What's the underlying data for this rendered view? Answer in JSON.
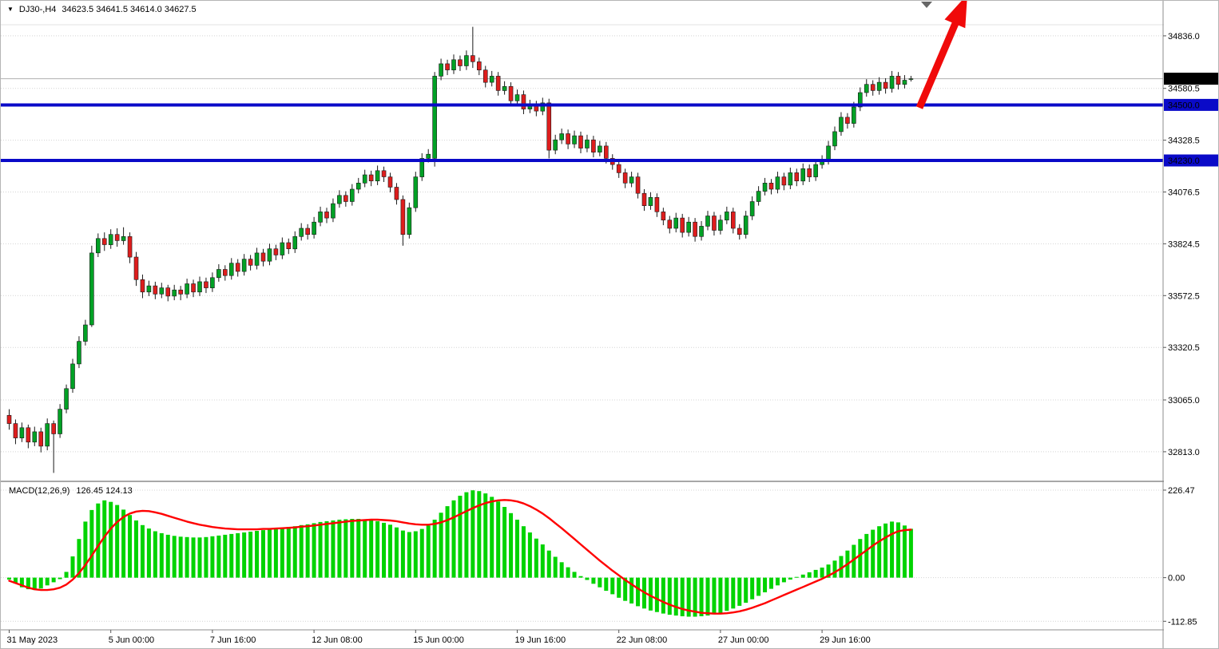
{
  "header": {
    "dropdown_icon": "▼",
    "symbol_period": "DJ30-,H4",
    "ohlc_text": "34623.5 34641.5 34614.0 34627.5"
  },
  "macd_label": {
    "name": "MACD(12,26,9)",
    "values": "126.45 124.13"
  },
  "colors": {
    "bull": "#00A125",
    "bear": "#DE1D1D",
    "outline": "#1a1a1a",
    "macd_hist": "#00D300",
    "macd_signal": "#FF0000",
    "level_line": "#0A0AC8",
    "arrow": "#F00A0A",
    "current_price_bg": "#000000",
    "badge_text": "#FFFFFF",
    "grid": "#d4d4d4",
    "axis_line": "#8c8c8c",
    "current_price_line": "#b0b0b0",
    "shift_marker": "#666666"
  },
  "chart_data": {
    "type": "candlestick",
    "title": "DJ30- H4 with MACD(12,26,9)",
    "legend_position": "none",
    "grid": "horizontal-dotted",
    "main": {
      "ylim": [
        32700,
        34890
      ],
      "y_ticks": [
        34836.0,
        34580.5,
        34328.5,
        34076.5,
        33824.5,
        33572.5,
        33320.5,
        33065.0,
        32813.0
      ],
      "current_price": {
        "value": 34627.5
      },
      "hlines": [
        {
          "price": 34500.0,
          "label": "34500.0"
        },
        {
          "price": 34230.0,
          "label": "34230.0"
        }
      ],
      "annotation": "large red up-trend arrow near last candles pointing above 34500 breakout",
      "candles": [
        [
          32990,
          33020,
          32920,
          32950
        ],
        [
          32950,
          32970,
          32850,
          32880
        ],
        [
          32880,
          32955,
          32860,
          32930
        ],
        [
          32930,
          32945,
          32830,
          32860
        ],
        [
          32860,
          32935,
          32840,
          32910
        ],
        [
          32910,
          32930,
          32810,
          32840
        ],
        [
          32840,
          32975,
          32820,
          32950
        ],
        [
          32950,
          32965,
          32710,
          32900
        ],
        [
          32900,
          33045,
          32880,
          33020
        ],
        [
          33020,
          33140,
          33000,
          33120
        ],
        [
          33120,
          33265,
          33100,
          33240
        ],
        [
          33240,
          33375,
          33220,
          33350
        ],
        [
          33350,
          33455,
          33330,
          33430
        ],
        [
          33430,
          33815,
          33420,
          33780
        ],
        [
          33780,
          33875,
          33760,
          33850
        ],
        [
          33850,
          33880,
          33790,
          33820
        ],
        [
          33820,
          33895,
          33800,
          33870
        ],
        [
          33870,
          33900,
          33810,
          33840
        ],
        [
          33840,
          33905,
          33820,
          33860
        ],
        [
          33860,
          33880,
          33730,
          33760
        ],
        [
          33760,
          33785,
          33620,
          33650
        ],
        [
          33650,
          33675,
          33560,
          33590
        ],
        [
          33590,
          33645,
          33570,
          33620
        ],
        [
          33620,
          33640,
          33555,
          33580
        ],
        [
          33580,
          33635,
          33560,
          33610
        ],
        [
          33610,
          33625,
          33545,
          33570
        ],
        [
          33570,
          33625,
          33550,
          33600
        ],
        [
          33600,
          33620,
          33550,
          33580
        ],
        [
          33580,
          33655,
          33560,
          33630
        ],
        [
          33630,
          33650,
          33565,
          33590
        ],
        [
          33590,
          33665,
          33570,
          33640
        ],
        [
          33640,
          33660,
          33585,
          33610
        ],
        [
          33610,
          33685,
          33590,
          33660
        ],
        [
          33660,
          33725,
          33640,
          33700
        ],
        [
          33700,
          33720,
          33645,
          33670
        ],
        [
          33670,
          33755,
          33650,
          33730
        ],
        [
          33730,
          33750,
          33665,
          33690
        ],
        [
          33690,
          33775,
          33670,
          33750
        ],
        [
          33750,
          33770,
          33695,
          33720
        ],
        [
          33720,
          33805,
          33700,
          33780
        ],
        [
          33780,
          33800,
          33715,
          33740
        ],
        [
          33740,
          33825,
          33720,
          33800
        ],
        [
          33800,
          33820,
          33745,
          33770
        ],
        [
          33770,
          33855,
          33750,
          33830
        ],
        [
          33830,
          33850,
          33775,
          33800
        ],
        [
          33800,
          33885,
          33780,
          33860
        ],
        [
          33860,
          33925,
          33840,
          33900
        ],
        [
          33900,
          33920,
          33845,
          33870
        ],
        [
          33870,
          33955,
          33850,
          33930
        ],
        [
          33930,
          34005,
          33910,
          33980
        ],
        [
          33980,
          34000,
          33925,
          33950
        ],
        [
          33950,
          34045,
          33930,
          34020
        ],
        [
          34020,
          34085,
          34000,
          34060
        ],
        [
          34060,
          34080,
          34005,
          34030
        ],
        [
          34030,
          34115,
          34010,
          34090
        ],
        [
          34090,
          34145,
          34070,
          34120
        ],
        [
          34120,
          34185,
          34100,
          34160
        ],
        [
          34160,
          34180,
          34105,
          34130
        ],
        [
          34130,
          34205,
          34110,
          34180
        ],
        [
          34180,
          34200,
          34125,
          34150
        ],
        [
          34150,
          34170,
          34075,
          34100
        ],
        [
          34100,
          34120,
          34015,
          34040
        ],
        [
          34040,
          34060,
          33815,
          33870
        ],
        [
          33870,
          34025,
          33850,
          34000
        ],
        [
          34000,
          34175,
          33980,
          34150
        ],
        [
          34150,
          34265,
          34130,
          34240
        ],
        [
          34240,
          34285,
          34220,
          34260
        ],
        [
          34240,
          34660,
          34200,
          34640
        ],
        [
          34640,
          34725,
          34620,
          34700
        ],
        [
          34700,
          34720,
          34645,
          34670
        ],
        [
          34670,
          34745,
          34650,
          34720
        ],
        [
          34720,
          34740,
          34665,
          34690
        ],
        [
          34690,
          34765,
          34670,
          34740
        ],
        [
          34740,
          34880,
          34680,
          34710
        ],
        [
          34710,
          34730,
          34645,
          34670
        ],
        [
          34670,
          34690,
          34585,
          34610
        ],
        [
          34610,
          34665,
          34590,
          34640
        ],
        [
          34640,
          34660,
          34545,
          34570
        ],
        [
          34570,
          34615,
          34550,
          34590
        ],
        [
          34590,
          34610,
          34495,
          34520
        ],
        [
          34520,
          34575,
          34500,
          34550
        ],
        [
          34550,
          34570,
          34455,
          34480
        ],
        [
          34480,
          34525,
          34460,
          34500
        ],
        [
          34500,
          34520,
          34445,
          34470
        ],
        [
          34470,
          34535,
          34450,
          34510
        ],
        [
          34510,
          34530,
          34240,
          34280
        ],
        [
          34280,
          34355,
          34260,
          34330
        ],
        [
          34330,
          34385,
          34310,
          34360
        ],
        [
          34360,
          34380,
          34285,
          34310
        ],
        [
          34310,
          34375,
          34290,
          34350
        ],
        [
          34350,
          34370,
          34265,
          34290
        ],
        [
          34290,
          34355,
          34270,
          34330
        ],
        [
          34330,
          34350,
          34245,
          34270
        ],
        [
          34270,
          34325,
          34250,
          34300
        ],
        [
          34300,
          34320,
          34215,
          34240
        ],
        [
          34240,
          34260,
          34185,
          34210
        ],
        [
          34210,
          34230,
          34145,
          34170
        ],
        [
          34170,
          34190,
          34095,
          34120
        ],
        [
          34120,
          34175,
          34100,
          34150
        ],
        [
          34150,
          34170,
          34045,
          34070
        ],
        [
          34070,
          34090,
          33985,
          34010
        ],
        [
          34010,
          34075,
          33990,
          34050
        ],
        [
          34050,
          34070,
          33955,
          33980
        ],
        [
          33980,
          34000,
          33915,
          33940
        ],
        [
          33940,
          33960,
          33875,
          33900
        ],
        [
          33900,
          33975,
          33880,
          33950
        ],
        [
          33950,
          33970,
          33855,
          33880
        ],
        [
          33880,
          33955,
          33860,
          33930
        ],
        [
          33930,
          33950,
          33835,
          33860
        ],
        [
          33860,
          33935,
          33840,
          33910
        ],
        [
          33910,
          33985,
          33890,
          33960
        ],
        [
          33960,
          33980,
          33865,
          33890
        ],
        [
          33890,
          33965,
          33870,
          33940
        ],
        [
          33940,
          34005,
          33920,
          33980
        ],
        [
          33980,
          34000,
          33875,
          33900
        ],
        [
          33900,
          33920,
          33845,
          33870
        ],
        [
          33870,
          33985,
          33850,
          33960
        ],
        [
          33960,
          34055,
          33940,
          34030
        ],
        [
          34030,
          34105,
          34010,
          34080
        ],
        [
          34080,
          34145,
          34060,
          34120
        ],
        [
          34120,
          34140,
          34065,
          34090
        ],
        [
          34090,
          34175,
          34070,
          34150
        ],
        [
          34150,
          34170,
          34085,
          34110
        ],
        [
          34110,
          34195,
          34090,
          34170
        ],
        [
          34170,
          34190,
          34105,
          34130
        ],
        [
          34130,
          34215,
          34110,
          34190
        ],
        [
          34190,
          34210,
          34125,
          34150
        ],
        [
          34150,
          34235,
          34130,
          34210
        ],
        [
          34210,
          34255,
          34190,
          34230
        ],
        [
          34230,
          34325,
          34210,
          34300
        ],
        [
          34300,
          34395,
          34280,
          34370
        ],
        [
          34370,
          34465,
          34350,
          34440
        ],
        [
          34440,
          34460,
          34385,
          34410
        ],
        [
          34410,
          34515,
          34390,
          34490
        ],
        [
          34490,
          34585,
          34470,
          34560
        ],
        [
          34560,
          34625,
          34540,
          34600
        ],
        [
          34600,
          34620,
          34545,
          34570
        ],
        [
          34570,
          34635,
          34550,
          34610
        ],
        [
          34610,
          34630,
          34555,
          34580
        ],
        [
          34580,
          34665,
          34560,
          34640
        ],
        [
          34640,
          34660,
          34575,
          34600
        ],
        [
          34600,
          34645,
          34580,
          34620
        ],
        [
          34623.5,
          34641.5,
          34614.0,
          34627.5
        ]
      ]
    },
    "macd": {
      "params": "MACD(12,26,9)",
      "main_value": 126.45,
      "signal_value": 124.13,
      "ylim": [
        -135,
        245
      ],
      "y_ticks": [
        226.47,
        0.0,
        -112.85
      ],
      "histogram": [
        -5,
        -15,
        -25,
        -30,
        -32,
        -28,
        -20,
        -12,
        -4,
        15,
        55,
        100,
        145,
        175,
        192,
        200,
        196,
        188,
        176,
        162,
        148,
        136,
        127,
        120,
        115,
        111,
        108,
        106,
        105,
        104,
        104,
        105,
        107,
        109,
        111,
        113,
        115,
        117,
        119,
        121,
        123,
        125,
        127,
        129,
        131,
        133,
        136,
        138,
        141,
        144,
        146,
        148,
        150,
        151,
        152,
        152,
        151,
        149,
        146,
        142,
        137,
        130,
        122,
        118,
        120,
        126,
        135,
        150,
        168,
        185,
        200,
        212,
        221,
        226,
        224,
        218,
        209,
        197,
        183,
        167,
        150,
        133,
        117,
        101,
        86,
        70,
        54,
        40,
        27,
        15,
        4,
        -6,
        -16,
        -25,
        -34,
        -43,
        -52,
        -60,
        -67,
        -74,
        -80,
        -85,
        -89,
        -93,
        -96,
        -98,
        -100,
        -101,
        -101,
        -100,
        -98,
        -95,
        -91,
        -86,
        -80,
        -73,
        -65,
        -56,
        -47,
        -38,
        -29,
        -20,
        -12,
        -5,
        2,
        8,
        14,
        20,
        26,
        34,
        44,
        56,
        70,
        85,
        100,
        113,
        124,
        133,
        140,
        145,
        143,
        135,
        126.45
      ],
      "signal": [
        -8,
        -14,
        -20,
        -26,
        -30,
        -32,
        -32,
        -30,
        -26,
        -18,
        -5,
        12,
        33,
        57,
        82,
        106,
        127,
        144,
        157,
        166,
        171,
        173,
        172,
        169,
        165,
        160,
        155,
        150,
        145,
        141,
        137,
        134,
        131,
        129,
        127,
        126,
        125,
        125,
        125,
        125,
        126,
        126,
        127,
        128,
        129,
        130,
        132,
        133,
        135,
        137,
        139,
        141,
        143,
        145,
        147,
        148,
        149,
        150,
        150,
        149,
        148,
        146,
        143,
        140,
        138,
        137,
        137,
        139,
        143,
        149,
        156,
        164,
        172,
        180,
        187,
        193,
        197,
        200,
        201,
        200,
        197,
        192,
        185,
        176,
        166,
        154,
        141,
        128,
        114,
        100,
        86,
        72,
        58,
        44,
        31,
        18,
        6,
        -6,
        -17,
        -28,
        -38,
        -47,
        -55,
        -63,
        -70,
        -76,
        -81,
        -85,
        -88,
        -91,
        -92,
        -93,
        -93,
        -92,
        -90,
        -87,
        -83,
        -78,
        -72,
        -66,
        -59,
        -52,
        -45,
        -38,
        -31,
        -24,
        -17,
        -10,
        -3,
        5,
        14,
        24,
        35,
        47,
        59,
        71,
        83,
        94,
        104,
        113,
        120,
        123,
        124.13
      ]
    },
    "x_axis": {
      "labels": [
        "31 May 2023",
        "5 Jun 00:00",
        "7 Jun 16:00",
        "12 Jun 08:00",
        "15 Jun 00:00",
        "19 Jun 16:00",
        "22 Jun 08:00",
        "27 Jun 00:00",
        "29 Jun 16:00"
      ],
      "candles_between_labels": 16
    }
  }
}
